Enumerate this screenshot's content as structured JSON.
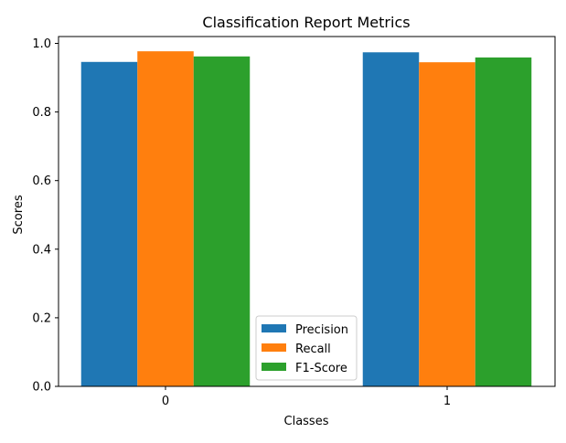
{
  "chart_data": {
    "type": "bar",
    "title": "Classification Report Metrics",
    "xlabel": "Classes",
    "ylabel": "Scores",
    "categories": [
      "0",
      "1"
    ],
    "series": [
      {
        "name": "Precision",
        "color": "#1f77b4",
        "values": [
          0.946,
          0.974
        ]
      },
      {
        "name": "Recall",
        "color": "#ff7f0e",
        "values": [
          0.977,
          0.945
        ]
      },
      {
        "name": "F1-Score",
        "color": "#2ca02c",
        "values": [
          0.962,
          0.959
        ]
      }
    ],
    "ylim": [
      0,
      1.02
    ],
    "yticks": [
      "0.0",
      "0.2",
      "0.4",
      "0.6",
      "0.8",
      "1.0"
    ],
    "grid": false,
    "legend_position": "bottom-center"
  }
}
